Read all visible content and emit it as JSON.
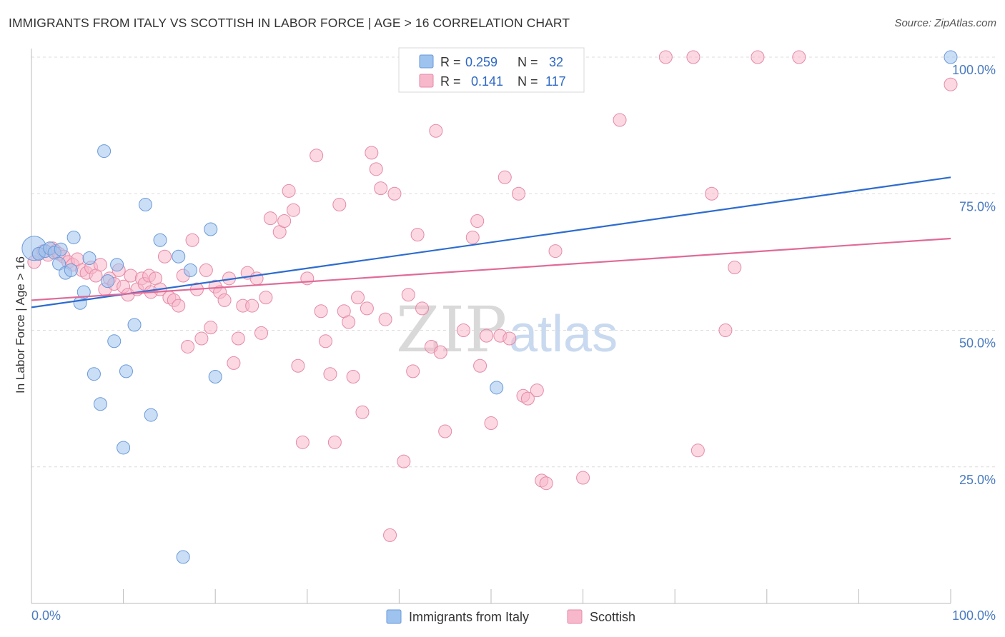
{
  "title": "IMMIGRANTS FROM ITALY VS SCOTTISH IN LABOR FORCE | AGE > 16 CORRELATION CHART",
  "source": "Source: ZipAtlas.com",
  "watermark": {
    "zip": "ZIP",
    "atlas": "atlas"
  },
  "legend": {
    "r_label": "R =",
    "n_label": "N =",
    "entries": [
      {
        "r": "0.259",
        "n": "32",
        "color": "#9ec3ef",
        "stroke": "#6a9ad8"
      },
      {
        "r": "0.141",
        "n": "117",
        "color": "#f7b8cb",
        "stroke": "#e58aa8"
      }
    ]
  },
  "chart_data": {
    "type": "scatter",
    "title": "IMMIGRANTS FROM ITALY VS SCOTTISH IN LABOR FORCE | AGE > 16 CORRELATION CHART",
    "xlabel": "",
    "ylabel": "In Labor Force | Age > 16",
    "xlim": [
      0,
      100
    ],
    "ylim": [
      0,
      100
    ],
    "x_tick_labels": {
      "left": "0.0%",
      "right": "100.0%"
    },
    "y_ticks": [
      {
        "value": 25,
        "label": "25.0%"
      },
      {
        "value": 50,
        "label": "50.0%"
      },
      {
        "value": 75,
        "label": "75.0%"
      },
      {
        "value": 100,
        "label": "100.0%"
      }
    ],
    "grid": true,
    "series": [
      {
        "name": "Immigrants from Italy",
        "color": "#9ec3ef",
        "line_color": "#2d6ccf",
        "trend": {
          "x0": 0,
          "y0": 54.2,
          "x1": 100,
          "y1": 78.0
        },
        "points": [
          [
            0.3,
            65.0
          ],
          [
            0.8,
            64.0
          ],
          [
            1.5,
            64.5
          ],
          [
            2.0,
            65.0
          ],
          [
            2.5,
            64.2
          ],
          [
            3.0,
            62.2
          ],
          [
            3.2,
            64.8
          ],
          [
            3.7,
            60.5
          ],
          [
            4.3,
            61.0
          ],
          [
            4.6,
            67.0
          ],
          [
            5.3,
            55.0
          ],
          [
            5.7,
            57.0
          ],
          [
            6.3,
            63.2
          ],
          [
            6.8,
            42.0
          ],
          [
            7.5,
            36.5
          ],
          [
            7.9,
            82.8
          ],
          [
            8.3,
            59.0
          ],
          [
            9.0,
            48.0
          ],
          [
            9.3,
            62.0
          ],
          [
            10.3,
            42.5
          ],
          [
            10.0,
            28.5
          ],
          [
            11.2,
            51.0
          ],
          [
            12.4,
            73.0
          ],
          [
            13.0,
            34.5
          ],
          [
            14.0,
            66.5
          ],
          [
            16.0,
            63.5
          ],
          [
            16.5,
            8.5
          ],
          [
            17.3,
            61.0
          ],
          [
            19.5,
            68.5
          ],
          [
            20.0,
            41.5
          ],
          [
            50.6,
            39.5
          ],
          [
            100.0,
            100.0
          ]
        ]
      },
      {
        "name": "Scottish",
        "color": "#f7b8cb",
        "line_color": "#e06a98",
        "trend": {
          "x0": 0,
          "y0": 55.5,
          "x1": 100,
          "y1": 66.8
        },
        "points": [
          [
            0.3,
            62.5
          ],
          [
            0.8,
            64.0
          ],
          [
            1.3,
            64.5
          ],
          [
            1.8,
            63.8
          ],
          [
            2.3,
            65.0
          ],
          [
            2.6,
            64.5
          ],
          [
            3.0,
            64.0
          ],
          [
            3.5,
            63.5
          ],
          [
            4.0,
            62.5
          ],
          [
            4.5,
            62.0
          ],
          [
            5.0,
            63.0
          ],
          [
            5.5,
            61.0
          ],
          [
            6.0,
            60.5
          ],
          [
            6.5,
            61.5
          ],
          [
            7.0,
            60.0
          ],
          [
            7.5,
            62.0
          ],
          [
            8.0,
            57.5
          ],
          [
            8.5,
            59.5
          ],
          [
            9.0,
            58.5
          ],
          [
            9.5,
            61.0
          ],
          [
            10.0,
            58.0
          ],
          [
            10.5,
            56.5
          ],
          [
            10.8,
            60.0
          ],
          [
            11.5,
            57.5
          ],
          [
            12.0,
            59.5
          ],
          [
            12.3,
            58.5
          ],
          [
            12.8,
            60.0
          ],
          [
            13.0,
            57.0
          ],
          [
            13.5,
            59.5
          ],
          [
            14.0,
            57.5
          ],
          [
            14.5,
            63.5
          ],
          [
            15.0,
            56.0
          ],
          [
            15.5,
            55.5
          ],
          [
            16.0,
            54.5
          ],
          [
            16.5,
            60.0
          ],
          [
            17.0,
            47.0
          ],
          [
            17.5,
            66.5
          ],
          [
            18.0,
            57.5
          ],
          [
            18.5,
            48.5
          ],
          [
            19.0,
            61.0
          ],
          [
            19.5,
            50.5
          ],
          [
            20.0,
            58.0
          ],
          [
            20.5,
            57.0
          ],
          [
            21.0,
            55.5
          ],
          [
            21.5,
            59.5
          ],
          [
            22.0,
            44.0
          ],
          [
            22.5,
            48.5
          ],
          [
            23.0,
            54.5
          ],
          [
            23.5,
            60.5
          ],
          [
            24.0,
            54.5
          ],
          [
            24.5,
            59.5
          ],
          [
            25.0,
            49.5
          ],
          [
            25.5,
            56.0
          ],
          [
            26.0,
            70.5
          ],
          [
            27.0,
            68.0
          ],
          [
            27.5,
            70.0
          ],
          [
            28.0,
            75.5
          ],
          [
            28.5,
            72.0
          ],
          [
            29.0,
            43.5
          ],
          [
            29.5,
            29.5
          ],
          [
            30.0,
            59.5
          ],
          [
            31.0,
            82.0
          ],
          [
            31.5,
            53.5
          ],
          [
            32.0,
            48.0
          ],
          [
            32.5,
            42.0
          ],
          [
            33.0,
            29.5
          ],
          [
            33.5,
            73.0
          ],
          [
            34.0,
            53.5
          ],
          [
            34.5,
            51.5
          ],
          [
            35.0,
            41.5
          ],
          [
            35.5,
            56.0
          ],
          [
            36.0,
            35.0
          ],
          [
            36.5,
            54.0
          ],
          [
            37.0,
            82.5
          ],
          [
            37.5,
            79.5
          ],
          [
            38.0,
            76.0
          ],
          [
            38.5,
            52.0
          ],
          [
            39.0,
            12.5
          ],
          [
            39.5,
            75.0
          ],
          [
            40.5,
            26.0
          ],
          [
            41.0,
            56.5
          ],
          [
            41.5,
            42.5
          ],
          [
            42.0,
            67.5
          ],
          [
            42.5,
            54.0
          ],
          [
            43.5,
            47.0
          ],
          [
            44.0,
            86.5
          ],
          [
            44.5,
            46.0
          ],
          [
            45.0,
            31.5
          ],
          [
            46.0,
            100.0
          ],
          [
            47.0,
            50.0
          ],
          [
            48.0,
            67.0
          ],
          [
            48.5,
            70.0
          ],
          [
            48.8,
            43.5
          ],
          [
            49.5,
            49.0
          ],
          [
            50.0,
            33.0
          ],
          [
            51.0,
            49.0
          ],
          [
            51.5,
            78.0
          ],
          [
            52.0,
            48.5
          ],
          [
            53.0,
            75.0
          ],
          [
            53.5,
            38.0
          ],
          [
            54.0,
            37.5
          ],
          [
            55.0,
            39.0
          ],
          [
            55.5,
            22.5
          ],
          [
            56.0,
            22.0
          ],
          [
            57.0,
            64.5
          ],
          [
            58.0,
            100.0
          ],
          [
            60.0,
            23.0
          ],
          [
            64.0,
            88.5
          ],
          [
            69.0,
            100.0
          ],
          [
            72.0,
            100.0
          ],
          [
            72.5,
            28.0
          ],
          [
            74.0,
            75.0
          ],
          [
            75.5,
            50.0
          ],
          [
            76.5,
            61.5
          ],
          [
            79.0,
            100.0
          ],
          [
            83.5,
            100.0
          ],
          [
            100.0,
            95.0
          ]
        ]
      }
    ]
  }
}
